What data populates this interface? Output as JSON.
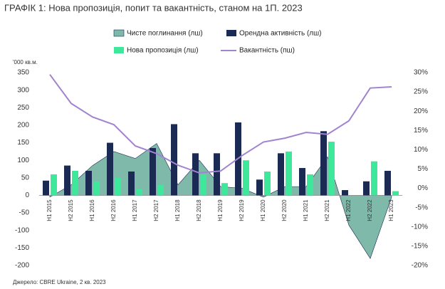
{
  "chart_data": {
    "type": "bar",
    "title": "ГРАФІК 1: Нова пропозиція, попит та вакантність, станом на 1П. 2023",
    "y_label": "'000 кв.м.",
    "source": "Джерело: CBRE Ukraine, 2 кв. 2023",
    "categories": [
      "H1 2015",
      "H2 2015",
      "H1 2016",
      "H2 2016",
      "H1 2017",
      "H2 2017",
      "H1 2018",
      "H2 2018",
      "H1 2019",
      "H2 2019",
      "H1 2020",
      "H2 2020",
      "H1 2021",
      "H2 2021",
      "H1 2022",
      "H2 2022",
      "H1 2023"
    ],
    "series": [
      {
        "name": "Чисте поглинання (лш)",
        "type": "area",
        "color": "#7fb9a9",
        "values": [
          -5,
          30,
          85,
          125,
          105,
          148,
          30,
          100,
          25,
          20,
          -5,
          25,
          25,
          110,
          -85,
          -180,
          -5
        ]
      },
      {
        "name": "Орендна активність (лш)",
        "type": "bar",
        "color": "#1b2a52",
        "values": [
          42,
          85,
          70,
          150,
          68,
          135,
          203,
          120,
          120,
          208,
          45,
          120,
          78,
          183,
          15,
          40,
          70
        ]
      },
      {
        "name": "Нова пропозиція (лш)",
        "type": "bar",
        "color": "#3ee89a",
        "values": [
          60,
          70,
          40,
          50,
          18,
          30,
          0,
          60,
          35,
          100,
          68,
          125,
          60,
          153,
          0,
          97,
          12
        ]
      },
      {
        "name": "Вакантність (пш)",
        "type": "line",
        "axis": "y2",
        "color": "#a184cf",
        "values": [
          29.5,
          22,
          18.5,
          16.5,
          11,
          9,
          6,
          4,
          4.5,
          8.5,
          12,
          13,
          14.5,
          14,
          17.5,
          26,
          26.3
        ]
      }
    ],
    "ylim": [
      -200,
      350
    ],
    "yticks": [
      -200,
      -150,
      -100,
      -50,
      0,
      50,
      100,
      150,
      200,
      250,
      300,
      350
    ],
    "y2lim": [
      -20,
      30
    ],
    "y2ticks": [
      {
        "value": -20,
        "label": "-20%"
      },
      {
        "value": -15,
        "label": "-15%"
      },
      {
        "value": -10,
        "label": "-10%"
      },
      {
        "value": -5,
        "label": "-5%"
      },
      {
        "value": 0,
        "label": "0%"
      },
      {
        "value": 5,
        "label": "5%"
      },
      {
        "value": 10,
        "label": "10%"
      },
      {
        "value": 15,
        "label": "15%"
      },
      {
        "value": 20,
        "label": "20%"
      },
      {
        "value": 25,
        "label": "25%"
      },
      {
        "value": 30,
        "label": "30%"
      }
    ]
  }
}
